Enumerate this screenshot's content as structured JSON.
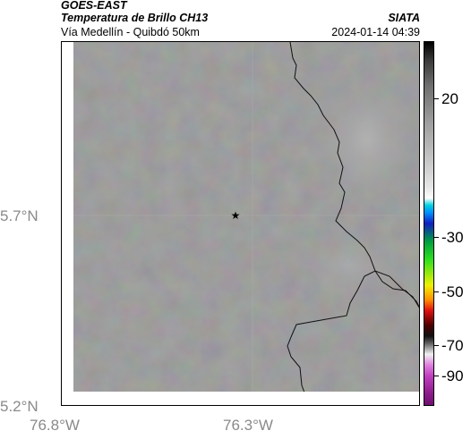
{
  "header": {
    "satellite": "GOES-EAST",
    "product": "Temperatura de Brillo CH13",
    "location": "Vía Medellín - Quibdó 50km",
    "organization": "SIATA",
    "timestamp": "2024-01-14 04:39"
  },
  "map": {
    "lat_labels": [
      "5.7°N",
      "5.2°N"
    ],
    "lon_labels": [
      "76.8°W",
      "76.3°W"
    ],
    "marker": "star-icon",
    "colors": {
      "background": "#7d7d7d",
      "border_line": "#000000",
      "gridline": "#a8a8a8"
    }
  },
  "colorbar": {
    "labels": [
      "20",
      "-30",
      "-50",
      "-70",
      "-90"
    ]
  }
}
